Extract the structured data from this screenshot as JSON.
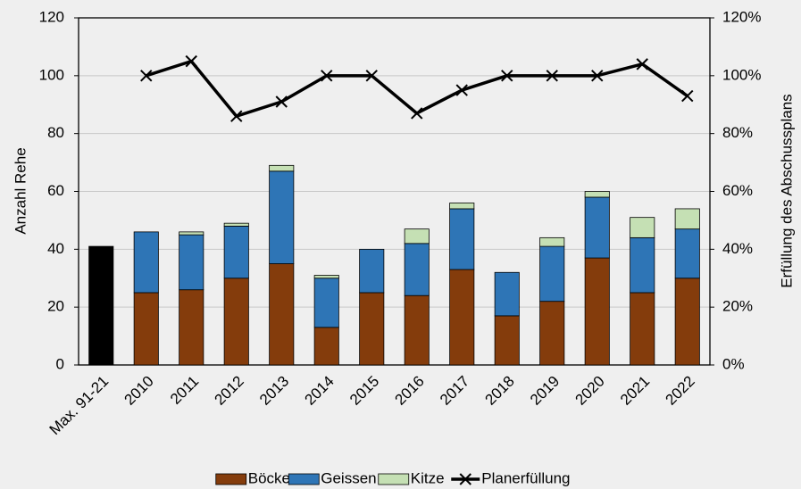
{
  "chart_data": {
    "type": "stacked-bar-line",
    "categories": [
      "Max. 91-21",
      "2010",
      "2011",
      "2012",
      "2013",
      "2014",
      "2015",
      "2016",
      "2017",
      "2018",
      "2019",
      "2020",
      "2021",
      "2022"
    ],
    "series": [
      {
        "name": "Böcke",
        "color": "#843c0c",
        "highlight_index": 0,
        "highlight_color": "#000000",
        "values": [
          41,
          25,
          26,
          30,
          35,
          13,
          25,
          24,
          33,
          17,
          22,
          37,
          25,
          30
        ]
      },
      {
        "name": "Geissen",
        "color": "#2e75b6",
        "values": [
          null,
          21,
          19,
          18,
          32,
          17,
          15,
          18,
          21,
          15,
          19,
          21,
          19,
          17
        ]
      },
      {
        "name": "Kitze",
        "color": "#c5e0b4",
        "values": [
          null,
          0,
          1,
          1,
          2,
          1,
          0,
          5,
          2,
          0,
          3,
          2,
          7,
          7
        ]
      },
      {
        "name": "Planerfüllung",
        "color": "#000000",
        "type": "line",
        "axis": "y2",
        "values": [
          null,
          100,
          105,
          86,
          91,
          100,
          100,
          87,
          95,
          100,
          100,
          100,
          104,
          93
        ]
      }
    ],
    "y_label": "Anzahl Rehe",
    "y2_label": "Erfüllung des Abschussplans",
    "ylim": [
      0,
      120
    ],
    "yticks": [
      0,
      20,
      40,
      60,
      80,
      100,
      120
    ],
    "y2lim": [
      0,
      120
    ],
    "y2ticks": [
      {
        "value": 0,
        "label": "0%"
      },
      {
        "value": 20,
        "label": "20%"
      },
      {
        "value": 40,
        "label": "40%"
      },
      {
        "value": 60,
        "label": "60%"
      },
      {
        "value": 80,
        "label": "80%"
      },
      {
        "value": 100,
        "label": "100%"
      },
      {
        "value": 120,
        "label": "120%"
      }
    ],
    "grid": true,
    "legend": "bottom"
  }
}
